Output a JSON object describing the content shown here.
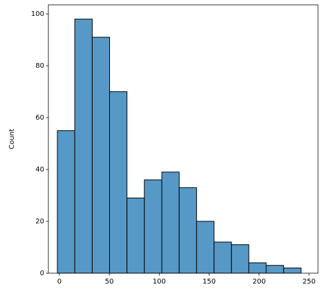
{
  "chart_data": {
    "type": "histogram",
    "ylabel": "Count",
    "bins": [
      -2,
      15.4,
      32.9,
      50.3,
      67.7,
      85.1,
      102.6,
      120,
      137.4,
      154.9,
      172.3,
      189.7,
      207.1,
      224.6,
      242
    ],
    "values": [
      55,
      98,
      91,
      70,
      29,
      36,
      39,
      33,
      20,
      12,
      11,
      4,
      3,
      2
    ],
    "color": "#5799c6",
    "xlim": [
      -11,
      259
    ],
    "ylim": [
      0,
      103.5
    ],
    "xticks": [
      0,
      50,
      100,
      150,
      200,
      250
    ],
    "yticks": [
      0,
      20,
      40,
      60,
      80,
      100
    ]
  }
}
